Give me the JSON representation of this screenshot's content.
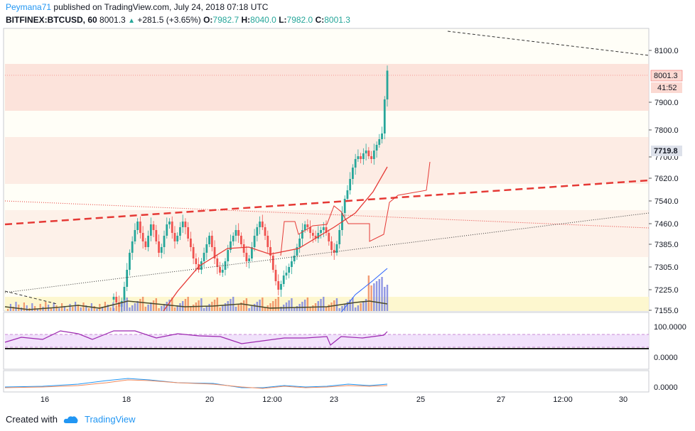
{
  "header": {
    "author": "Peymana71",
    "published_text": "published on TradingView.com, July 24, 2018 07:18 UTC",
    "symbol": "BITFINEX:BTCUSD, 60",
    "last": "8001.3",
    "change": "+281.5 (+3.65%)",
    "open_label": "O:",
    "open": "7982.7",
    "high_label": "H:",
    "high": "8040.0",
    "low_label": "L:",
    "low": "7982.0",
    "close_label": "C:",
    "close": "8001.3"
  },
  "footer": {
    "created_with": "Created with",
    "brand": "TradingView"
  },
  "colors": {
    "up": "#26a69a",
    "down": "#ef5350",
    "accent": "#2196f3",
    "trend_red": "#e53935",
    "volume_blue": "#7e86e0",
    "volume_orange": "#f08a5d",
    "band_pink": "#fbd9d2",
    "band_yellow": "#fdf7cf",
    "rsi_purple": "#9c27b0"
  },
  "chart_data": {
    "type": "candlestick",
    "price_axis_ticks": [
      "8100.0",
      "7900.0",
      "7800.0",
      "7700.0",
      "7620.0",
      "7540.0",
      "7460.0",
      "7385.0",
      "7305.0",
      "7225.0",
      "7155.0"
    ],
    "price_labels": {
      "last_price": "8001.3",
      "countdown": "41:52",
      "marker": "7719.8"
    },
    "ylim": [
      7155,
      8150
    ],
    "time_axis_labels": [
      "16",
      "18",
      "20",
      "12:00",
      "23",
      "25",
      "27",
      "12:00",
      "30"
    ],
    "rsi_ticks": [
      "100.0000",
      "0.0000"
    ],
    "macd_ticks": [
      "0.0000"
    ],
    "close_series": [
      7205,
      7185,
      7170,
      7190,
      7240,
      7300,
      7360,
      7400,
      7440,
      7470,
      7430,
      7400,
      7380,
      7420,
      7460,
      7440,
      7400,
      7360,
      7380,
      7420,
      7460,
      7470,
      7430,
      7400,
      7420,
      7450,
      7470,
      7450,
      7410,
      7380,
      7340,
      7320,
      7300,
      7330,
      7360,
      7390,
      7420,
      7380,
      7340,
      7310,
      7290,
      7300,
      7330,
      7370,
      7400,
      7420,
      7440,
      7420,
      7390,
      7360,
      7330,
      7340,
      7380,
      7420,
      7450,
      7470,
      7450,
      7420,
      7380,
      7350,
      7300,
      7260,
      7230,
      7250,
      7280,
      7290,
      7310,
      7330,
      7350,
      7380,
      7410,
      7440,
      7460,
      7450,
      7430,
      7420,
      7410,
      7430,
      7440,
      7450,
      7430,
      7400,
      7370,
      7360,
      7390,
      7440,
      7500,
      7550,
      7580,
      7620,
      7660,
      7690,
      7700,
      7690,
      7710,
      7720,
      7700,
      7690,
      7720,
      7740,
      7760,
      7780,
      7900,
      8001.3
    ]
  }
}
